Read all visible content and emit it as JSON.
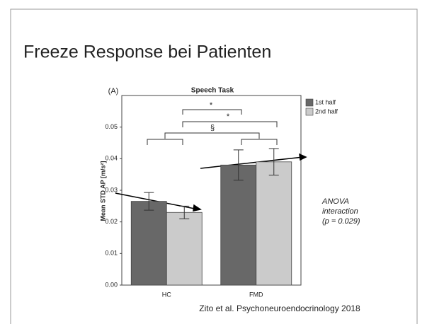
{
  "slide": {
    "title": "Freeze Response bei Patienten",
    "citation": "Zito et al. Psychoneuroendocrinology 2018"
  },
  "chart_data": {
    "type": "bar",
    "panel_label": "(A)",
    "title": "Speech Task",
    "y_label": "Mean STD AP [m/s²]",
    "categories": [
      "HC",
      "FMD"
    ],
    "series": [
      {
        "name": "1st half",
        "color": "#686868",
        "values": [
          0.0265,
          0.038
        ],
        "errors": [
          0.0028,
          0.0048
        ]
      },
      {
        "name": "2nd half",
        "color": "#cbcbcb",
        "values": [
          0.023,
          0.039
        ],
        "errors": [
          0.002,
          0.0042
        ]
      }
    ],
    "ylim": [
      0,
      0.06
    ],
    "yticks": [
      {
        "value": 0,
        "label": "0.00"
      },
      0.01,
      0.02,
      0.03,
      0.04,
      0.05
    ],
    "significance": [
      "*",
      "*",
      "§"
    ],
    "annotation": [
      "ANOVA",
      "interaction",
      "(p = 0.029)"
    ],
    "legend": "right"
  }
}
